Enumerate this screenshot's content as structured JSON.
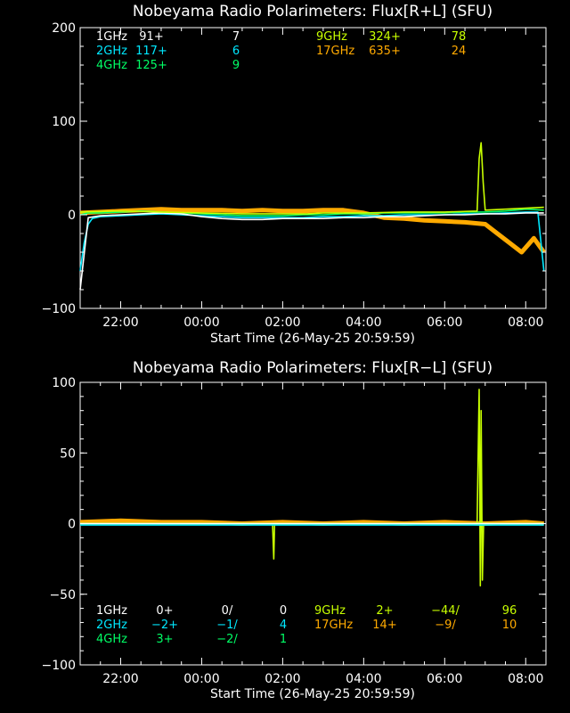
{
  "chart_data": [
    {
      "type": "line",
      "title": "Nobeyama Radio Polarimeters: Flux[R+L] (SFU)",
      "xlabel": "Start Time (26-May-25 20:59:59)",
      "ylabel": "",
      "x_ticks": [
        "22:00",
        "00:00",
        "02:00",
        "04:00",
        "06:00",
        "08:00"
      ],
      "y_ticks": [
        "200",
        "100",
        "0",
        "−100"
      ],
      "ylim": [
        -100,
        200
      ],
      "xlim_hours": [
        0,
        11.5
      ],
      "legend": [
        {
          "band": "1GHz",
          "base": "91+",
          "val": "7",
          "color": "#ffffff"
        },
        {
          "band": "2GHz",
          "base": "117+",
          "val": "6",
          "color": "#00e8ff"
        },
        {
          "band": "4GHz",
          "base": "125+",
          "val": "9",
          "color": "#00ff66"
        },
        {
          "band": "9GHz",
          "base": "324+",
          "val": "78",
          "color": "#c8ff00"
        },
        {
          "band": "17GHz",
          "base": "635+",
          "val": "24",
          "color": "#ffaa00"
        }
      ],
      "series": [
        {
          "name": "17GHz",
          "color": "#ffaa00",
          "x": [
            0,
            0.5,
            1,
            1.5,
            2,
            2.5,
            3,
            3.5,
            4,
            4.5,
            5,
            5.5,
            6,
            6.5,
            7,
            7.5,
            8,
            8.5,
            9,
            9.5,
            10,
            10.3,
            10.6,
            10.9,
            11.2,
            11.45
          ],
          "y": [
            2,
            3,
            4,
            5,
            6,
            5,
            5,
            5,
            4,
            5,
            4,
            4,
            5,
            5,
            2,
            -3,
            -4,
            -6,
            -7,
            -8,
            -10,
            -20,
            -30,
            -40,
            -25,
            -40
          ]
        },
        {
          "name": "2GHz",
          "color": "#00e8ff",
          "x": [
            0,
            0.1,
            0.2,
            0.3,
            0.5,
            1,
            1.5,
            2,
            2.5,
            3,
            3.5,
            4,
            4.5,
            5,
            5.5,
            6,
            6.5,
            7,
            7.5,
            8,
            8.5,
            9,
            9.5,
            10,
            10.5,
            11,
            11.3,
            11.45
          ],
          "y": [
            -60,
            -30,
            -10,
            -4,
            -2,
            -1,
            0,
            1,
            0,
            -1,
            -2,
            -3,
            -3,
            -3,
            -3,
            -2,
            -2,
            -1,
            -1,
            0,
            0,
            0,
            1,
            1,
            2,
            3,
            3,
            -60
          ]
        },
        {
          "name": "4GHz",
          "color": "#00ff66",
          "x": [
            0,
            0.2,
            0.5,
            1,
            1.5,
            2,
            2.5,
            3,
            3.5,
            4,
            4.5,
            5,
            5.5,
            6,
            6.5,
            7,
            7.5,
            8,
            8.5,
            9,
            9.5,
            10,
            10.5,
            11,
            11.45
          ],
          "y": [
            0,
            2,
            2,
            3,
            4,
            3,
            2,
            1,
            0,
            -1,
            -1,
            -1,
            0,
            0,
            1,
            1,
            2,
            2,
            2,
            2,
            3,
            3,
            4,
            6,
            5
          ]
        },
        {
          "name": "1GHz",
          "color": "#ffffff",
          "x": [
            0,
            0.2,
            0.5,
            1,
            1.5,
            2,
            2.5,
            3,
            3.5,
            4,
            4.5,
            5,
            5.5,
            6,
            6.5,
            7,
            7.5,
            8,
            8.5,
            9,
            9.5,
            10,
            10.5,
            11,
            11.45
          ],
          "y": [
            -80,
            -3,
            -1,
            0,
            1,
            2,
            1,
            -2,
            -4,
            -5,
            -5,
            -4,
            -4,
            -4,
            -3,
            -3,
            -2,
            -2,
            -1,
            0,
            0,
            1,
            1,
            2,
            2
          ]
        },
        {
          "name": "9GHz",
          "color": "#c8ff00",
          "x": [
            0,
            1,
            2,
            3,
            4,
            5,
            5.6,
            6,
            7,
            8,
            9,
            9.8,
            9.85,
            9.9,
            9.95,
            10,
            10.5,
            11,
            11.45
          ],
          "y": [
            3,
            4,
            3,
            2,
            1,
            1,
            1,
            2,
            2,
            3,
            3,
            4,
            60,
            77,
            35,
            5,
            6,
            7,
            8
          ]
        }
      ]
    },
    {
      "type": "line",
      "title": "Nobeyama Radio Polarimeters: Flux[R−L] (SFU)",
      "xlabel": "Start Time (26-May-25 20:59:59)",
      "ylabel": "",
      "x_ticks": [
        "22:00",
        "00:00",
        "02:00",
        "04:00",
        "06:00",
        "08:00"
      ],
      "y_ticks": [
        "100",
        "50",
        "0",
        "−50",
        "−100"
      ],
      "ylim": [
        -100,
        100
      ],
      "xlim_hours": [
        0,
        11.5
      ],
      "legend": [
        {
          "band": "1GHz",
          "base": "0+",
          "val": "0/",
          "extra": "0",
          "color": "#ffffff"
        },
        {
          "band": "2GHz",
          "base": "−2+",
          "val": "−1/",
          "extra": "4",
          "color": "#00e8ff"
        },
        {
          "band": "4GHz",
          "base": "3+",
          "val": "−2/",
          "extra": "1",
          "color": "#00ff66"
        },
        {
          "band": "9GHz",
          "base": "2+",
          "val": "−44/",
          "extra": "96",
          "color": "#c8ff00"
        },
        {
          "band": "17GHz",
          "base": "14+",
          "val": "−9/",
          "extra": "10",
          "color": "#ffaa00"
        }
      ],
      "series": [
        {
          "name": "17GHz",
          "color": "#ffaa00",
          "x": [
            0,
            1,
            2,
            3,
            4,
            5,
            6,
            7,
            8,
            9,
            10,
            11,
            11.45
          ],
          "y": [
            1,
            2,
            1,
            1,
            0,
            1,
            0,
            1,
            0,
            1,
            0,
            1,
            0
          ]
        },
        {
          "name": "9GHz",
          "color": "#c8ff00",
          "x": [
            0,
            2,
            4,
            4.75,
            4.78,
            4.8,
            6,
            8,
            9.8,
            9.85,
            9.88,
            9.9,
            9.93,
            9.96,
            10.5,
            11.45
          ],
          "y": [
            0,
            0,
            0,
            0,
            -25,
            0,
            0,
            0,
            0,
            95,
            -44,
            80,
            -40,
            0,
            0,
            0
          ]
        },
        {
          "name": "2GHz",
          "color": "#00e8ff",
          "x": [
            0,
            2,
            4,
            6,
            8,
            10,
            11.45
          ],
          "y": [
            -1,
            -1,
            -1,
            -1,
            -1,
            -1,
            -1
          ]
        },
        {
          "name": "4GHz",
          "color": "#00ff66",
          "x": [
            0,
            2,
            4,
            6,
            8,
            10,
            11.45
          ],
          "y": [
            0,
            0,
            0,
            0,
            0,
            0,
            0
          ]
        },
        {
          "name": "1GHz",
          "color": "#ffffff",
          "x": [
            0,
            2,
            4,
            6,
            8,
            10,
            11.45
          ],
          "y": [
            0,
            0,
            0,
            0,
            0,
            0,
            0
          ]
        }
      ]
    }
  ]
}
